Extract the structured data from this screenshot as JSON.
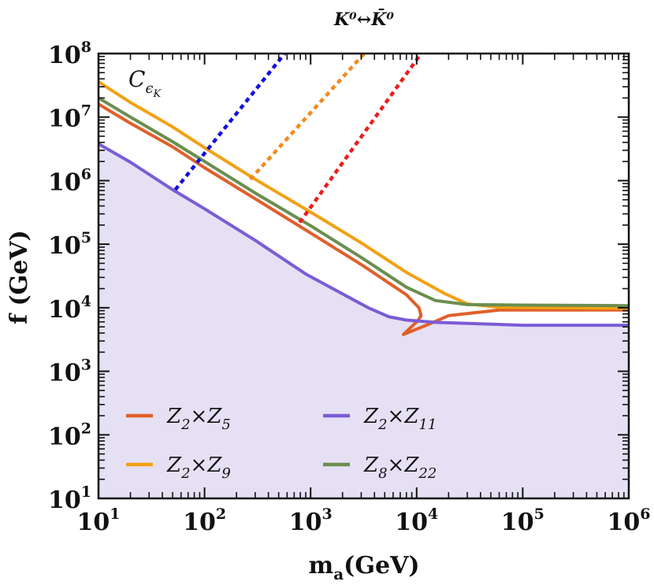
{
  "chart_data": {
    "type": "line",
    "title": "K⁰↔K̄⁰",
    "panel_label": "C",
    "panel_label_sub": "ϵ",
    "panel_label_subsub": "K",
    "xlabel": "m",
    "xlabel_sub": "a",
    "xlabel_unit": "(GeV)",
    "ylabel": "f (GeV)",
    "xscale": "log",
    "yscale": "log",
    "xlim": [
      10,
      1000000
    ],
    "ylim": [
      10,
      100000000
    ],
    "x_tick_base": "10",
    "x_tick_exponents": [
      "1",
      "2",
      "3",
      "4",
      "5",
      "6"
    ],
    "y_tick_base": "10",
    "y_tick_exponents": [
      "1",
      "2",
      "3",
      "4",
      "5",
      "6",
      "7",
      "8"
    ],
    "legend_position": "lower-center",
    "shaded_region": {
      "name": "excluded region (below Z2×Z11 curve)",
      "color": "#e6e0f4"
    },
    "series": [
      {
        "name": "Z2×Z5",
        "legend": {
          "a": "Z",
          "a_sub": "2",
          "op": "×",
          "b": "Z",
          "b_sub": "5"
        },
        "color": "#e0602a",
        "style": "solid",
        "points": [
          [
            10,
            16000000
          ],
          [
            20,
            8000000
          ],
          [
            50,
            3400000
          ],
          [
            100,
            1600000
          ],
          [
            300,
            520000
          ],
          [
            1000,
            150000
          ],
          [
            3000,
            48000
          ],
          [
            8000,
            16000
          ],
          [
            10500,
            10000
          ],
          [
            11000,
            7500
          ],
          [
            10200,
            6200
          ],
          [
            7500,
            3800
          ],
          [
            13000,
            5500
          ],
          [
            20000,
            7500
          ],
          [
            60000,
            9200
          ],
          [
            1000000,
            9200
          ]
        ]
      },
      {
        "name": "Z2×Z9",
        "legend": {
          "a": "Z",
          "a_sub": "2",
          "op": "×",
          "b": "Z",
          "b_sub": "9"
        },
        "color": "#f2a114",
        "style": "solid",
        "points": [
          [
            10,
            36000000
          ],
          [
            20,
            17000000
          ],
          [
            50,
            7000000
          ],
          [
            100,
            3300000
          ],
          [
            300,
            1050000
          ],
          [
            1000,
            320000
          ],
          [
            3000,
            105000
          ],
          [
            8000,
            36000
          ],
          [
            18000,
            17000
          ],
          [
            30000,
            11500
          ],
          [
            60000,
            10200
          ],
          [
            1000000,
            9800
          ]
        ]
      },
      {
        "name": "Z2×Z11",
        "legend": {
          "a": "Z",
          "a_sub": "2",
          "op": "×",
          "b": "Z",
          "b_sub": "11"
        },
        "color": "#7b5cd6",
        "style": "solid",
        "points": [
          [
            10,
            3800000
          ],
          [
            20,
            1950000
          ],
          [
            50,
            720000
          ],
          [
            100,
            360000
          ],
          [
            300,
            115000
          ],
          [
            900,
            34000
          ],
          [
            2000,
            16500
          ],
          [
            3500,
            10000
          ],
          [
            5500,
            7200
          ],
          [
            8000,
            6400
          ],
          [
            15000,
            5900
          ],
          [
            100000,
            5300
          ],
          [
            1000000,
            5300
          ]
        ]
      },
      {
        "name": "Z8×Z22",
        "legend": {
          "a": "Z",
          "a_sub": "8",
          "op": "×",
          "b": "Z",
          "b_sub": "22"
        },
        "color": "#6b8e4e",
        "style": "solid",
        "points": [
          [
            10,
            20000000
          ],
          [
            20,
            10000000
          ],
          [
            50,
            4100000
          ],
          [
            100,
            2000000
          ],
          [
            300,
            640000
          ],
          [
            1000,
            195000
          ],
          [
            3000,
            62000
          ],
          [
            8000,
            21000
          ],
          [
            15000,
            13000
          ],
          [
            30000,
            11200
          ],
          [
            100000,
            11000
          ],
          [
            1000000,
            10800
          ]
        ]
      },
      {
        "name": "blue dotted",
        "color": "#1010e0",
        "style": "dotted",
        "points": [
          [
            53,
            720000
          ],
          [
            570,
            100000000
          ]
        ]
      },
      {
        "name": "orange dotted",
        "color": "#f28a1e",
        "style": "dotted",
        "points": [
          [
            270,
            1050000
          ],
          [
            3200,
            100000000
          ]
        ]
      },
      {
        "name": "red dotted",
        "color": "#ee1c1c",
        "style": "dotted",
        "points": [
          [
            790,
            220000
          ],
          [
            11000,
            100000000
          ]
        ]
      }
    ]
  }
}
